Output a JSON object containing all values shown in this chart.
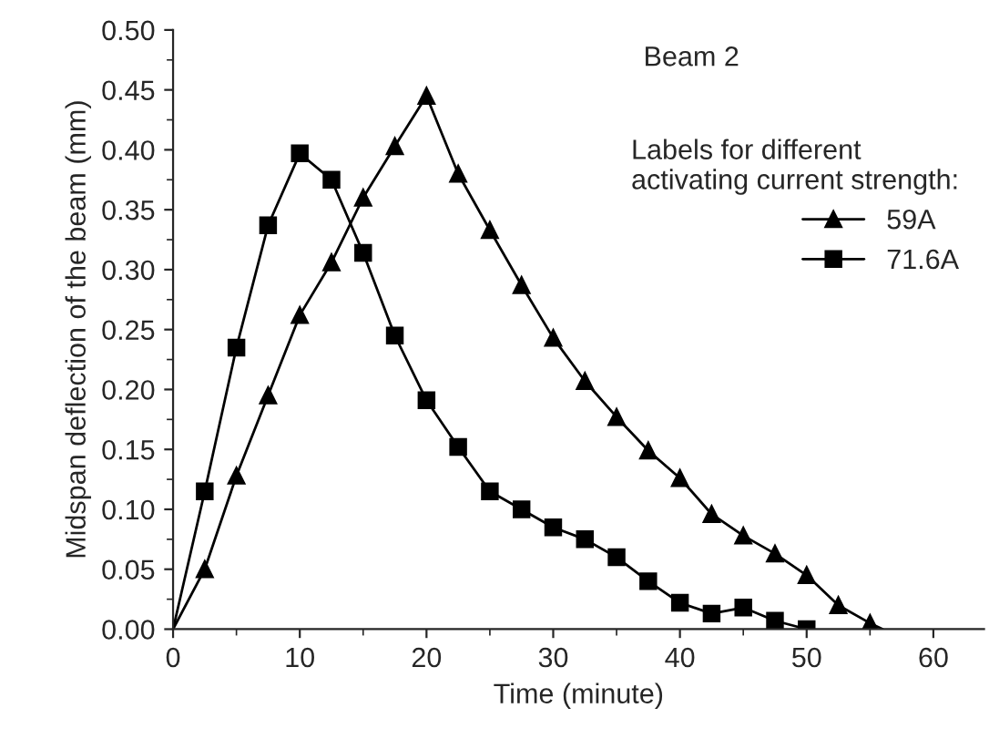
{
  "chart_data": {
    "type": "line",
    "xlabel": "Time (minute)",
    "ylabel": "Midspan deflection of the beam (mm)",
    "legend_title": "Labels for different\nactivating current strength:",
    "annotations": [
      "Beam 2"
    ],
    "x": [
      0,
      2.5,
      5,
      7.5,
      10,
      12.5,
      15,
      17.5,
      20,
      22.5,
      25,
      27.5,
      30,
      32.5,
      35,
      37.5,
      40,
      42.5,
      45,
      47.5,
      50,
      52.5,
      55,
      56
    ],
    "series": [
      {
        "name": "59A",
        "color": "#000000",
        "marker": "triangle",
        "values": [
          0.0,
          0.05,
          0.128,
          0.195,
          0.262,
          0.306,
          0.36,
          0.403,
          0.445,
          0.38,
          0.333,
          0.287,
          0.243,
          0.207,
          0.177,
          0.149,
          0.126,
          0.096,
          0.078,
          0.063,
          0.045,
          0.02,
          0.005,
          0.0
        ]
      },
      {
        "name": "71.6A",
        "color": "#000000",
        "marker": "square",
        "x": [
          0,
          2.5,
          5,
          7.5,
          10,
          12.5,
          15,
          17.5,
          20,
          22.5,
          25,
          27.5,
          30,
          32.5,
          35,
          37.5,
          40,
          42.5,
          45,
          47.5,
          50
        ],
        "values": [
          0.0,
          0.115,
          0.235,
          0.337,
          0.397,
          0.375,
          0.314,
          0.245,
          0.191,
          0.152,
          0.115,
          0.1,
          0.085,
          0.075,
          0.06,
          0.04,
          0.022,
          0.013,
          0.018,
          0.007,
          0.0
        ]
      }
    ],
    "xlim": [
      0,
      64
    ],
    "xticks": [
      0,
      10,
      20,
      30,
      40,
      50,
      60
    ],
    "ylim": [
      0,
      0.5
    ],
    "yticks": [
      {
        "value": 0,
        "label": "0.00"
      },
      {
        "value": 0.05,
        "label": "0.05"
      },
      {
        "value": 0.1,
        "label": "0.10"
      },
      {
        "value": 0.15,
        "label": "0.15"
      },
      {
        "value": 0.2,
        "label": "0.20"
      },
      {
        "value": 0.25,
        "label": "0.25"
      },
      {
        "value": 0.3,
        "label": "0.30"
      },
      {
        "value": 0.35,
        "label": "0.35"
      },
      {
        "value": 0.4,
        "label": "0.40"
      },
      {
        "value": 0.45,
        "label": "0.45"
      },
      {
        "value": 0.5,
        "label": "0.50"
      }
    ],
    "grid": false,
    "legend": "top right",
    "line_style": "solid"
  }
}
